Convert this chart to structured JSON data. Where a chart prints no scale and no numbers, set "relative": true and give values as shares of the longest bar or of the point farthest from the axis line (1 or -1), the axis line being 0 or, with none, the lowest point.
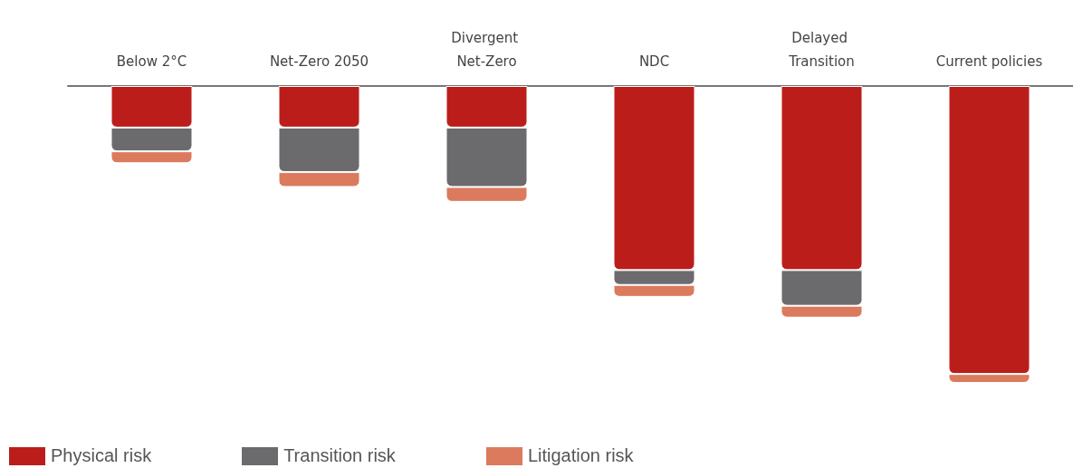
{
  "chart_data": {
    "type": "bar",
    "relative": true,
    "stacked": true,
    "legend": "bottom left",
    "categories": [
      "Below 2°C",
      "Net-Zero 2050",
      "Divergent Net-Zero",
      "NDC",
      "Delayed Transition",
      "Current policies"
    ],
    "series": [
      {
        "name": "Physical risk",
        "color": "#bb1e1a",
        "values": [
          -0.14,
          -0.14,
          -0.14,
          -0.62,
          -0.62,
          -0.97
        ]
      },
      {
        "name": "Transition risk",
        "color": "#6b6b6e",
        "values": [
          -0.08,
          -0.15,
          -0.2,
          -0.05,
          -0.12,
          0
        ]
      },
      {
        "name": "Litigation risk",
        "color": "#db7a5c",
        "values": [
          -0.04,
          -0.05,
          -0.05,
          -0.04,
          -0.04,
          -0.03
        ]
      }
    ]
  }
}
